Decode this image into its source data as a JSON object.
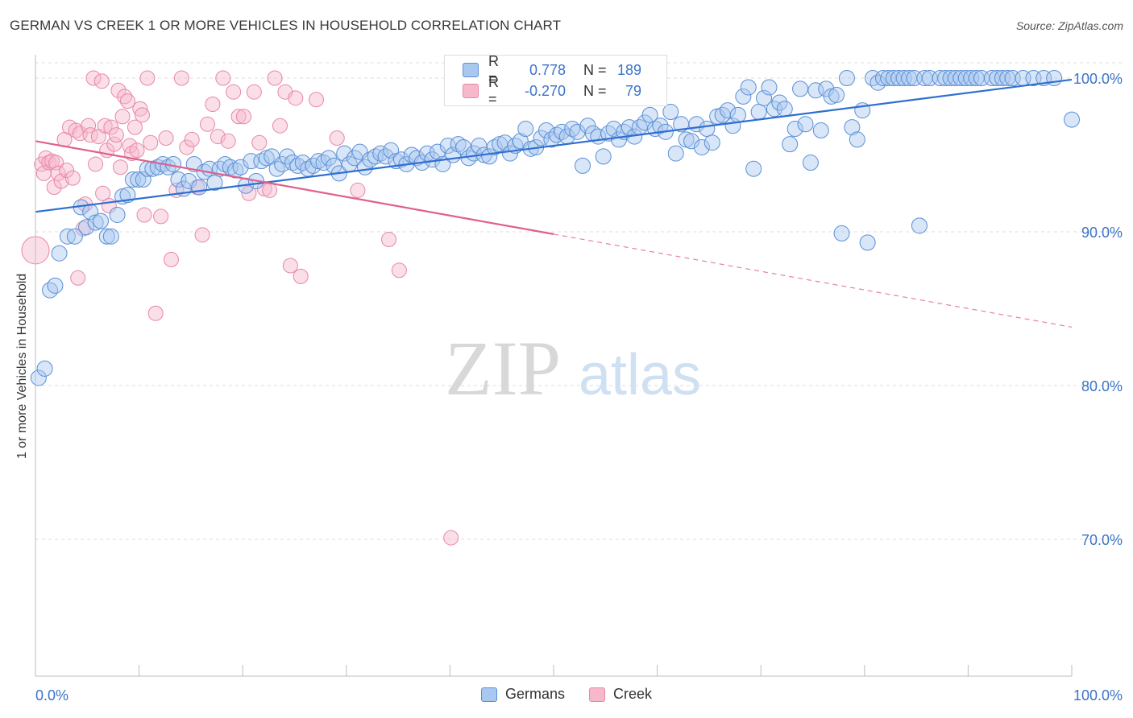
{
  "header": {
    "title": "GERMAN VS CREEK 1 OR MORE VEHICLES IN HOUSEHOLD CORRELATION CHART",
    "source": "Source: ZipAtlas.com"
  },
  "colors": {
    "blue_fill": "#a8c8f0",
    "blue_stroke": "#5b8fd6",
    "blue_line": "#2f6fd0",
    "pink_fill": "#f7b8cb",
    "pink_stroke": "#e887a5",
    "pink_line": "#e0608c",
    "axis_text": "#3b73c9"
  },
  "legend": {
    "rows": [
      {
        "r_label": "R =",
        "r_value": "0.778",
        "n_label": "N =",
        "n_value": "189"
      },
      {
        "r_label": "R =",
        "r_value": "-0.270",
        "n_label": "N =",
        "n_value": "79"
      }
    ]
  },
  "watermark": {
    "zip": "ZIP",
    "atlas": "atlas"
  },
  "chart_data": {
    "type": "scatter",
    "title": "GERMAN VS CREEK 1 OR MORE VEHICLES IN HOUSEHOLD CORRELATION CHART",
    "xlabel": "",
    "ylabel": "1 or more Vehicles in Household",
    "xlim": [
      0,
      100
    ],
    "ylim": [
      60.5,
      101.5
    ],
    "x_tick_labels": [
      "0.0%",
      "100.0%"
    ],
    "y_ticks": [
      70,
      80,
      90,
      100
    ],
    "y_tick_labels": [
      "70.0%",
      "80.0%",
      "90.0%",
      "100.0%"
    ],
    "grid": true,
    "legend_position": "top-center",
    "series": [
      {
        "name": "Germans",
        "color": "#a8c8f0",
        "trend": {
          "x": [
            0,
            100
          ],
          "y": [
            91.3,
            99.9
          ],
          "dashed_from": null
        },
        "points": [
          [
            0.3,
            80.5
          ],
          [
            0.9,
            81.1
          ],
          [
            1.4,
            86.2
          ],
          [
            1.9,
            86.5
          ],
          [
            2.3,
            88.6
          ],
          [
            3.1,
            89.7
          ],
          [
            3.8,
            89.7
          ],
          [
            4.4,
            91.6
          ],
          [
            4.9,
            90.3
          ],
          [
            5.3,
            91.3
          ],
          [
            5.8,
            90.6
          ],
          [
            6.3,
            90.7
          ],
          [
            6.9,
            89.7
          ],
          [
            7.3,
            89.7
          ],
          [
            7.9,
            91.1
          ],
          [
            8.4,
            92.3
          ],
          [
            8.9,
            92.4
          ],
          [
            9.4,
            93.4
          ],
          [
            9.9,
            93.4
          ],
          [
            10.4,
            93.4
          ],
          [
            10.8,
            94.1
          ],
          [
            11.3,
            94.1
          ],
          [
            11.8,
            94.2
          ],
          [
            12.3,
            94.4
          ],
          [
            12.8,
            94.2
          ],
          [
            13.3,
            94.4
          ],
          [
            13.8,
            93.4
          ],
          [
            14.3,
            92.8
          ],
          [
            14.8,
            93.3
          ],
          [
            15.3,
            94.4
          ],
          [
            15.8,
            92.9
          ],
          [
            16.3,
            93.9
          ],
          [
            16.8,
            94.1
          ],
          [
            17.3,
            93.2
          ],
          [
            17.8,
            94.1
          ],
          [
            18.3,
            94.4
          ],
          [
            18.8,
            94.2
          ],
          [
            19.3,
            94.0
          ],
          [
            19.8,
            94.2
          ],
          [
            20.3,
            93.0
          ],
          [
            20.8,
            94.6
          ],
          [
            21.3,
            93.3
          ],
          [
            21.8,
            94.6
          ],
          [
            22.3,
            94.8
          ],
          [
            22.8,
            94.9
          ],
          [
            23.3,
            94.1
          ],
          [
            23.8,
            94.4
          ],
          [
            24.3,
            94.9
          ],
          [
            24.8,
            94.5
          ],
          [
            25.3,
            94.3
          ],
          [
            25.8,
            94.5
          ],
          [
            26.3,
            94.1
          ],
          [
            26.8,
            94.3
          ],
          [
            27.3,
            94.6
          ],
          [
            27.8,
            94.5
          ],
          [
            28.3,
            94.8
          ],
          [
            28.8,
            94.3
          ],
          [
            29.3,
            93.8
          ],
          [
            29.8,
            95.1
          ],
          [
            30.3,
            94.4
          ],
          [
            30.8,
            94.8
          ],
          [
            31.3,
            95.2
          ],
          [
            31.8,
            94.2
          ],
          [
            32.3,
            94.7
          ],
          [
            32.8,
            94.9
          ],
          [
            33.3,
            95.1
          ],
          [
            33.8,
            94.9
          ],
          [
            34.3,
            95.3
          ],
          [
            34.8,
            94.6
          ],
          [
            35.3,
            94.7
          ],
          [
            35.8,
            94.4
          ],
          [
            36.3,
            95.0
          ],
          [
            36.8,
            94.8
          ],
          [
            37.3,
            94.5
          ],
          [
            37.8,
            95.1
          ],
          [
            38.3,
            94.7
          ],
          [
            38.8,
            95.2
          ],
          [
            39.3,
            94.4
          ],
          [
            39.8,
            95.6
          ],
          [
            40.3,
            95.0
          ],
          [
            40.8,
            95.7
          ],
          [
            41.3,
            95.5
          ],
          [
            41.8,
            94.8
          ],
          [
            42.3,
            95.1
          ],
          [
            42.8,
            95.6
          ],
          [
            43.3,
            95.0
          ],
          [
            43.8,
            94.9
          ],
          [
            44.3,
            95.5
          ],
          [
            44.8,
            95.7
          ],
          [
            45.3,
            95.8
          ],
          [
            45.8,
            95.1
          ],
          [
            46.3,
            95.6
          ],
          [
            46.8,
            95.9
          ],
          [
            47.3,
            96.7
          ],
          [
            47.8,
            95.4
          ],
          [
            48.3,
            95.5
          ],
          [
            48.8,
            96.1
          ],
          [
            49.3,
            96.6
          ],
          [
            49.8,
            96.0
          ],
          [
            50.3,
            96.3
          ],
          [
            50.8,
            96.5
          ],
          [
            51.3,
            96.2
          ],
          [
            51.8,
            96.7
          ],
          [
            52.3,
            96.5
          ],
          [
            52.8,
            94.3
          ],
          [
            53.3,
            96.9
          ],
          [
            53.8,
            96.4
          ],
          [
            54.3,
            96.2
          ],
          [
            54.8,
            94.9
          ],
          [
            55.3,
            96.4
          ],
          [
            55.8,
            96.7
          ],
          [
            56.3,
            96.0
          ],
          [
            56.8,
            96.5
          ],
          [
            57.3,
            96.8
          ],
          [
            57.8,
            96.2
          ],
          [
            58.3,
            96.8
          ],
          [
            58.8,
            97.1
          ],
          [
            59.3,
            97.6
          ],
          [
            59.8,
            96.7
          ],
          [
            60.3,
            96.9
          ],
          [
            60.8,
            96.5
          ],
          [
            61.3,
            97.8
          ],
          [
            61.8,
            95.1
          ],
          [
            62.3,
            97.0
          ],
          [
            62.8,
            96.0
          ],
          [
            63.3,
            95.9
          ],
          [
            63.8,
            97.0
          ],
          [
            64.3,
            95.5
          ],
          [
            64.8,
            96.7
          ],
          [
            65.3,
            95.8
          ],
          [
            65.8,
            97.5
          ],
          [
            66.3,
            97.6
          ],
          [
            66.8,
            97.9
          ],
          [
            67.3,
            96.9
          ],
          [
            67.8,
            97.6
          ],
          [
            68.3,
            98.8
          ],
          [
            68.8,
            99.4
          ],
          [
            69.3,
            94.1
          ],
          [
            69.8,
            97.8
          ],
          [
            70.3,
            98.7
          ],
          [
            70.8,
            99.4
          ],
          [
            71.3,
            98.0
          ],
          [
            71.8,
            98.4
          ],
          [
            72.3,
            98.0
          ],
          [
            72.8,
            95.7
          ],
          [
            73.3,
            96.7
          ],
          [
            73.8,
            99.3
          ],
          [
            74.3,
            97.0
          ],
          [
            74.8,
            94.5
          ],
          [
            75.3,
            99.2
          ],
          [
            75.8,
            96.6
          ],
          [
            76.3,
            99.3
          ],
          [
            76.8,
            98.8
          ],
          [
            77.3,
            98.9
          ],
          [
            77.8,
            89.9
          ],
          [
            78.3,
            100.0
          ],
          [
            78.8,
            96.8
          ],
          [
            79.3,
            96.0
          ],
          [
            79.8,
            97.9
          ],
          [
            80.3,
            89.3
          ],
          [
            80.8,
            100.0
          ],
          [
            81.3,
            99.7
          ],
          [
            81.8,
            100.0
          ],
          [
            82.3,
            100.0
          ],
          [
            82.8,
            100.0
          ],
          [
            83.3,
            100.0
          ],
          [
            83.8,
            100.0
          ],
          [
            84.3,
            100.0
          ],
          [
            84.8,
            100.0
          ],
          [
            85.3,
            90.4
          ],
          [
            85.8,
            100.0
          ],
          [
            86.3,
            100.0
          ],
          [
            87.3,
            100.0
          ],
          [
            87.8,
            100.0
          ],
          [
            88.3,
            100.0
          ],
          [
            88.8,
            100.0
          ],
          [
            89.3,
            100.0
          ],
          [
            89.8,
            100.0
          ],
          [
            90.3,
            100.0
          ],
          [
            90.8,
            100.0
          ],
          [
            91.3,
            100.0
          ],
          [
            92.3,
            100.0
          ],
          [
            92.8,
            100.0
          ],
          [
            93.3,
            100.0
          ],
          [
            93.8,
            100.0
          ],
          [
            94.3,
            100.0
          ],
          [
            95.3,
            100.0
          ],
          [
            96.3,
            100.0
          ],
          [
            97.3,
            100.0
          ],
          [
            98.3,
            100.0
          ],
          [
            100.0,
            97.3
          ]
        ]
      },
      {
        "name": "Creek",
        "color": "#f7b8cb",
        "trend": {
          "x": [
            0,
            100
          ],
          "y": [
            95.9,
            83.8
          ],
          "dashed_from": 50
        },
        "points": [
          [
            0.0,
            88.8
          ],
          [
            0.6,
            94.4
          ],
          [
            0.8,
            93.8
          ],
          [
            1.0,
            94.8
          ],
          [
            1.3,
            94.5
          ],
          [
            1.6,
            94.6
          ],
          [
            1.8,
            92.9
          ],
          [
            2.0,
            94.5
          ],
          [
            2.2,
            93.8
          ],
          [
            2.5,
            93.3
          ],
          [
            2.8,
            96.0
          ],
          [
            3.0,
            94.0
          ],
          [
            3.3,
            96.8
          ],
          [
            3.6,
            93.5
          ],
          [
            3.9,
            96.6
          ],
          [
            4.1,
            87.0
          ],
          [
            4.3,
            96.4
          ],
          [
            4.6,
            90.2
          ],
          [
            4.8,
            91.8
          ],
          [
            5.1,
            96.9
          ],
          [
            5.3,
            96.3
          ],
          [
            5.6,
            100.0
          ],
          [
            5.8,
            94.4
          ],
          [
            6.1,
            96.2
          ],
          [
            6.4,
            99.8
          ],
          [
            6.5,
            92.5
          ],
          [
            6.7,
            96.9
          ],
          [
            6.9,
            95.3
          ],
          [
            7.1,
            91.7
          ],
          [
            7.3,
            96.8
          ],
          [
            7.6,
            95.7
          ],
          [
            7.8,
            96.3
          ],
          [
            8.0,
            99.2
          ],
          [
            8.2,
            94.2
          ],
          [
            8.4,
            97.5
          ],
          [
            8.6,
            98.8
          ],
          [
            8.9,
            98.5
          ],
          [
            9.1,
            95.6
          ],
          [
            9.3,
            95.1
          ],
          [
            9.6,
            96.8
          ],
          [
            9.8,
            95.3
          ],
          [
            10.1,
            98.0
          ],
          [
            10.3,
            97.6
          ],
          [
            10.5,
            91.1
          ],
          [
            10.8,
            100.0
          ],
          [
            11.1,
            95.8
          ],
          [
            11.6,
            84.7
          ],
          [
            12.1,
            91.0
          ],
          [
            12.6,
            96.1
          ],
          [
            13.1,
            88.2
          ],
          [
            13.6,
            92.7
          ],
          [
            14.1,
            100.0
          ],
          [
            14.6,
            95.5
          ],
          [
            15.1,
            96.0
          ],
          [
            15.6,
            92.9
          ],
          [
            16.1,
            89.8
          ],
          [
            16.6,
            97.0
          ],
          [
            17.1,
            98.3
          ],
          [
            17.6,
            96.2
          ],
          [
            18.1,
            100.0
          ],
          [
            18.6,
            95.9
          ],
          [
            19.1,
            99.1
          ],
          [
            19.6,
            97.5
          ],
          [
            20.1,
            97.5
          ],
          [
            20.6,
            92.5
          ],
          [
            21.1,
            99.1
          ],
          [
            21.6,
            95.8
          ],
          [
            22.1,
            92.8
          ],
          [
            22.6,
            92.7
          ],
          [
            23.1,
            100.0
          ],
          [
            23.6,
            96.9
          ],
          [
            24.1,
            99.1
          ],
          [
            24.6,
            87.8
          ],
          [
            25.1,
            98.7
          ],
          [
            25.6,
            87.1
          ],
          [
            27.1,
            98.6
          ],
          [
            29.1,
            96.1
          ],
          [
            31.1,
            92.7
          ],
          [
            34.1,
            89.5
          ],
          [
            35.1,
            87.5
          ],
          [
            40.1,
            70.1
          ]
        ]
      }
    ]
  }
}
